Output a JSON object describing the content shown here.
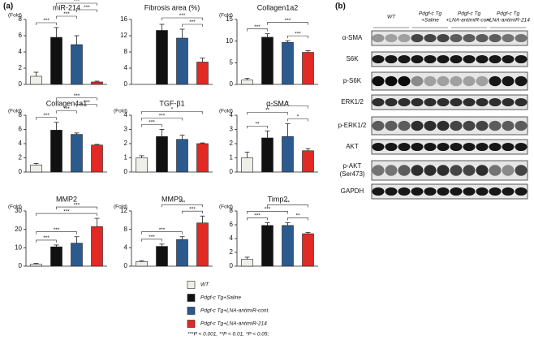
{
  "panel_a_label": "(a)",
  "chart_data": [
    {
      "type": "bar",
      "title": "miR-214",
      "ylabel": "(Fold)",
      "values": [
        1.0,
        5.8,
        4.9,
        0.3
      ],
      "errors": [
        0.5,
        1.2,
        1.1,
        0.1
      ],
      "ylim": [
        0,
        8
      ],
      "yticks": [
        0,
        2,
        4,
        6,
        8
      ],
      "brackets": [
        {
          "from": 0,
          "to": 1,
          "label": "***"
        },
        {
          "from": 1,
          "to": 2,
          "label": "***"
        },
        {
          "from": 2,
          "to": 3,
          "label": "***"
        },
        {
          "from": 1,
          "to": 3,
          "label": "***"
        }
      ]
    },
    {
      "type": "bar",
      "title": "Fibrosis area (%)",
      "values": [
        null,
        13.3,
        11.4,
        5.5
      ],
      "errors": [
        null,
        1.5,
        2.2,
        1.0
      ],
      "ylim": [
        0,
        16
      ],
      "yticks": [
        0,
        4,
        8,
        12,
        16
      ],
      "brackets": [
        {
          "from": 2,
          "to": 3,
          "label": "***"
        },
        {
          "from": 1,
          "to": 3,
          "label": "***"
        }
      ]
    },
    {
      "type": "bar",
      "title": "Collagen1a2",
      "ylabel": "(Fold)",
      "values": [
        1.0,
        10.9,
        9.7,
        7.4
      ],
      "errors": [
        0.4,
        0.8,
        0.4,
        0.4
      ],
      "ylim": [
        0,
        15
      ],
      "yticks": [
        0,
        5,
        10,
        15
      ],
      "brackets": [
        {
          "from": 0,
          "to": 1,
          "label": "***"
        },
        {
          "from": 2,
          "to": 3,
          "label": "***"
        },
        {
          "from": 1,
          "to": 3,
          "label": "***"
        }
      ]
    },
    {
      "type": "bar",
      "title": "Collagen4a1",
      "ylabel": "(Fold)",
      "values": [
        1.0,
        5.9,
        5.3,
        3.8
      ],
      "errors": [
        0.2,
        1.1,
        0.2,
        0.1
      ],
      "ylim": [
        0,
        8
      ],
      "yticks": [
        0,
        2,
        4,
        6,
        8
      ],
      "brackets": [
        {
          "from": 0,
          "to": 1,
          "label": "***"
        },
        {
          "from": 1,
          "to": 2,
          "label": "***"
        },
        {
          "from": 2,
          "to": 3,
          "label": "***"
        },
        {
          "from": 1,
          "to": 3,
          "label": "***"
        }
      ]
    },
    {
      "type": "bar",
      "title": "TGF-β1",
      "ylabel": "(Fold)",
      "values": [
        1.0,
        2.5,
        2.3,
        2.0
      ],
      "errors": [
        0.15,
        0.5,
        0.3,
        0.05
      ],
      "ylim": [
        0,
        4
      ],
      "yticks": [
        0,
        1,
        2,
        3,
        4
      ],
      "brackets": [
        {
          "from": 0,
          "to": 1,
          "label": "***"
        },
        {
          "from": 0,
          "to": 2,
          "label": "***"
        },
        {
          "from": 0,
          "to": 3,
          "label": "*"
        }
      ]
    },
    {
      "type": "bar",
      "title": "α-SMA",
      "ylabel": "(Fold)",
      "values": [
        1.0,
        2.4,
        2.5,
        1.5
      ],
      "errors": [
        0.4,
        0.5,
        0.9,
        0.15
      ],
      "ylim": [
        0,
        4
      ],
      "yticks": [
        0,
        1,
        2,
        3,
        4
      ],
      "brackets": [
        {
          "from": 0,
          "to": 1,
          "label": "**"
        },
        {
          "from": 2,
          "to": 3,
          "label": "*"
        },
        {
          "from": 0,
          "to": 2,
          "label": "**"
        },
        {
          "from": 1,
          "to": 3,
          "label": "*"
        }
      ]
    },
    {
      "type": "bar",
      "title": "MMP2",
      "ylabel": "(Fold)",
      "values": [
        1.0,
        10.5,
        12.5,
        21.5
      ],
      "errors": [
        0.5,
        1.0,
        3.5,
        4.5
      ],
      "ylim": [
        0,
        30
      ],
      "yticks": [
        0,
        10,
        20,
        30
      ],
      "brackets": [
        {
          "from": 0,
          "to": 1,
          "label": "***"
        },
        {
          "from": 0,
          "to": 2,
          "label": "***"
        },
        {
          "from": 0,
          "to": 3,
          "label": "***"
        },
        {
          "from": 1,
          "to": 3,
          "label": "***"
        }
      ]
    },
    {
      "type": "bar",
      "title": "MMP9",
      "ylabel": "(Fold)",
      "values": [
        1.0,
        4.3,
        5.8,
        9.4
      ],
      "errors": [
        0.2,
        0.5,
        0.6,
        1.5
      ],
      "ylim": [
        0,
        12
      ],
      "yticks": [
        0,
        4,
        8,
        12
      ],
      "brackets": [
        {
          "from": 0,
          "to": 1,
          "label": "***"
        },
        {
          "from": 0,
          "to": 2,
          "label": "***"
        },
        {
          "from": 2,
          "to": 3,
          "label": "***"
        },
        {
          "from": 1,
          "to": 3,
          "label": "***"
        }
      ]
    },
    {
      "type": "bar",
      "title": "Timp2",
      "ylabel": "(Fold)",
      "values": [
        1.0,
        5.9,
        5.9,
        4.7
      ],
      "errors": [
        0.3,
        0.4,
        0.4,
        0.2
      ],
      "ylim": [
        0,
        8
      ],
      "yticks": [
        0,
        2,
        4,
        6,
        8
      ],
      "brackets": [
        {
          "from": 0,
          "to": 1,
          "label": "***"
        },
        {
          "from": 2,
          "to": 3,
          "label": "**"
        },
        {
          "from": 0,
          "to": 2,
          "label": "***"
        },
        {
          "from": 1,
          "to": 3,
          "label": "**"
        }
      ]
    }
  ],
  "legend": {
    "groups": [
      {
        "name": "WT",
        "color": "#efefe9"
      },
      {
        "name": "Pdgf-c Tg+Saline",
        "color": "#111111"
      },
      {
        "name": "Pdgf-c Tg+LNA-antimiR-cont.",
        "color": "#2b5a8e"
      },
      {
        "name": "Pdgf-c Tg+LNA-antimiR-214",
        "color": "#e12a25"
      }
    ],
    "footnote": "***P < 0.001, **P < 0.01, *P < 0.05;"
  },
  "panel_b": {
    "label": "(b)",
    "groups": [
      {
        "lines": [
          "WT"
        ]
      },
      {
        "lines": [
          "Pdgf-c Tg",
          "+Saline"
        ]
      },
      {
        "lines": [
          "Pdgf-c Tg",
          "+LNA-antimiR-cont."
        ]
      },
      {
        "lines": [
          "Pdgf-c Tg",
          "+LNA-antimiR-214"
        ]
      }
    ],
    "rows": [
      {
        "lines": [
          "α-SMA"
        ]
      },
      {
        "lines": [
          "S6K"
        ]
      },
      {
        "lines": [
          "p-S6K"
        ]
      },
      {
        "lines": [
          "ERK1/2"
        ]
      },
      {
        "lines": [
          "p-ERK1/2"
        ]
      },
      {
        "lines": [
          "AKT"
        ]
      },
      {
        "lines": [
          "p-AKT",
          "(Ser473)"
        ]
      },
      {
        "lines": [
          "GAPDH"
        ]
      }
    ]
  }
}
